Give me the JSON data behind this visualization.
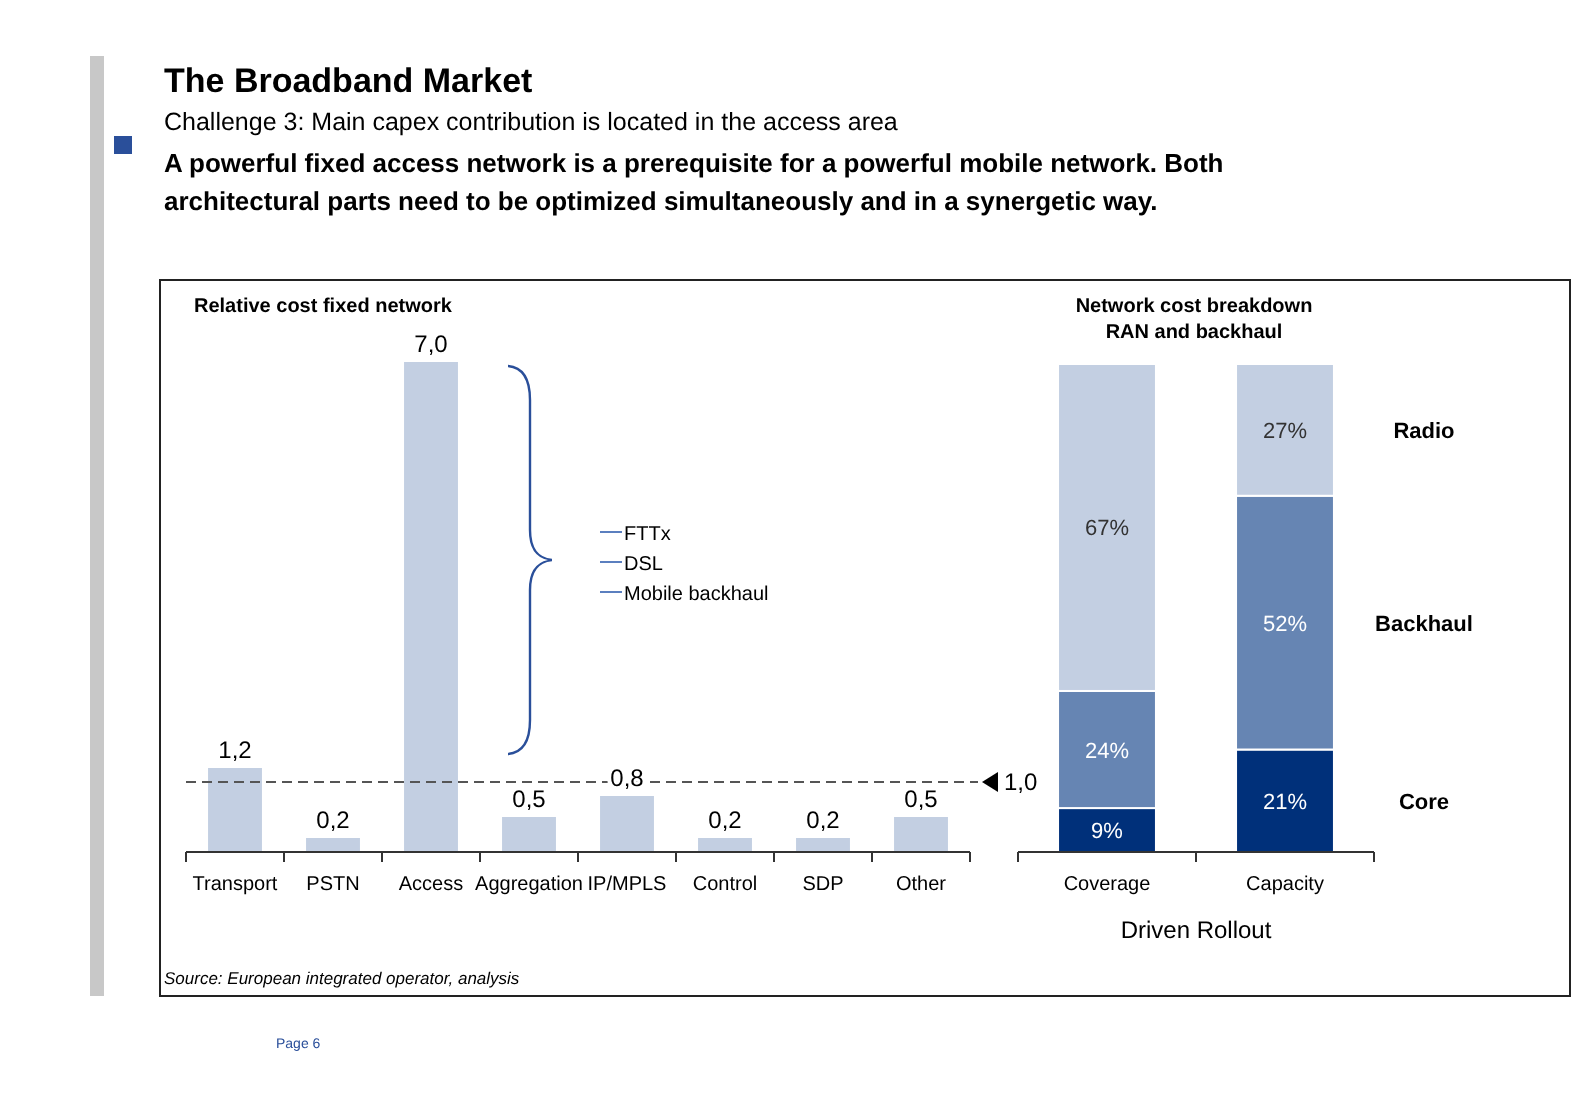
{
  "chart_data": [
    {
      "type": "bar",
      "title": "Relative cost fixed network",
      "categories": [
        "Transport",
        "PSTN",
        "Access",
        "Aggregation",
        "IP/MPLS",
        "Control",
        "SDP",
        "Other"
      ],
      "values": [
        1.2,
        0.2,
        7.0,
        0.5,
        0.8,
        0.2,
        0.2,
        0.5
      ],
      "value_labels": [
        "1,2",
        "0,2",
        "7,0",
        "0,5",
        "0,8",
        "0,2",
        "0,2",
        "0,5"
      ],
      "color": "#c3cfe2",
      "ylim": [
        0,
        7
      ],
      "tick_labels": "x",
      "ref_lines": [
        {
          "axis": "y",
          "value": 1.0,
          "label": "1,0",
          "line_style": "dashed",
          "color": "#555555"
        }
      ],
      "annotations": [
        "The Broadband Market",
        "Challenge 3: Main capex contribution is located in the access area",
        "A powerful fixed access network is a prerequisite for a powerful mobile network. Both architectural parts need to be optimized simultaneously and in a synergetic way.",
        "FTTx",
        "DSL",
        "Mobile backhaul",
        "Source: European integrated operator, analysis",
        "Page 6"
      ]
    },
    {
      "type": "bar",
      "stacked": true,
      "title": "Network cost breakdown RAN and backhaul",
      "xlabel": "Driven Rollout",
      "categories": [
        "Coverage",
        "Capacity"
      ],
      "ylim": [
        0,
        100
      ],
      "tick_labels": "x",
      "legend": "right",
      "data_labels": true,
      "series": [
        {
          "name": "Core",
          "color": "#00307a",
          "values": [
            9,
            21
          ],
          "value_labels": [
            "9%",
            "21%"
          ]
        },
        {
          "name": "Backhaul",
          "color": "#6685b3",
          "values": [
            24,
            52
          ],
          "value_labels": [
            "24%",
            "52%"
          ]
        },
        {
          "name": "Radio",
          "color": "#c3cfe2",
          "values": [
            67,
            27
          ],
          "value_labels": [
            "67%",
            "27%"
          ]
        }
      ]
    }
  ]
}
